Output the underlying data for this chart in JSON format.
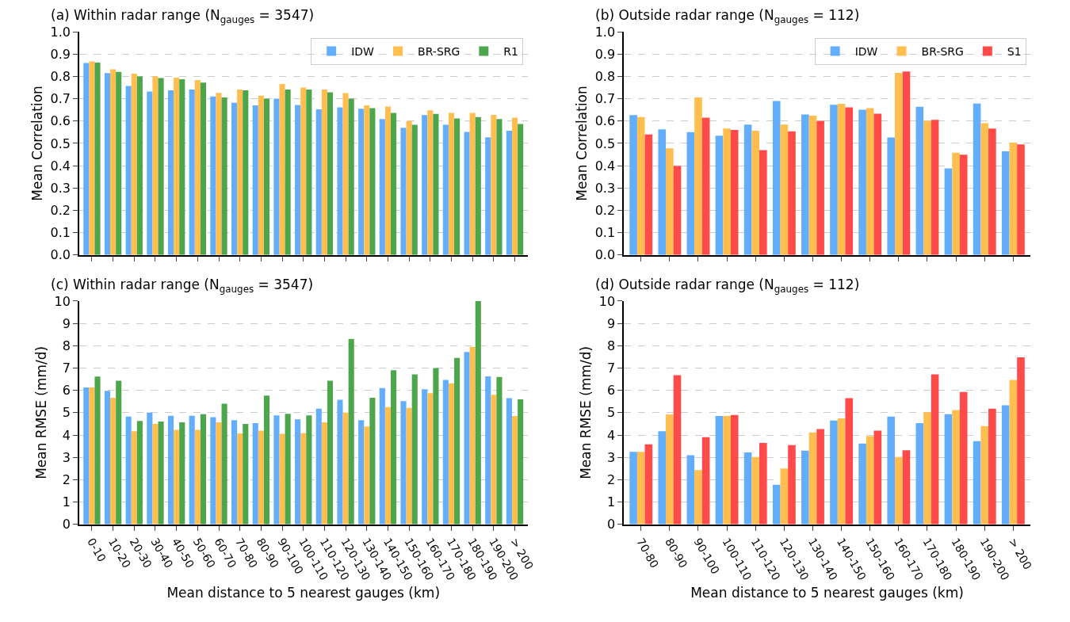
{
  "chart_data": [
    {
      "type": "bar",
      "title": "(a) Within radar range (N$_{gauges}$ = 3547)",
      "ylabel": "Mean Correlation",
      "categories": [
        null,
        null,
        null,
        null,
        null,
        null,
        null,
        null,
        null,
        null,
        null,
        null,
        null,
        null,
        null,
        null,
        null,
        null,
        null,
        null,
        null
      ],
      "series": [
        {
          "name": "IDW",
          "color": "#63aefc",
          "values": [
            0.86,
            0.815,
            0.757,
            0.732,
            0.738,
            0.741,
            0.71,
            0.682,
            0.67,
            0.7,
            0.672,
            0.652,
            0.661,
            0.655,
            0.609,
            0.57,
            0.627,
            0.583,
            0.551,
            0.527,
            0.557
          ]
        },
        {
          "name": "BR-SRG",
          "color": "#ffbe4f",
          "values": [
            0.867,
            0.832,
            0.812,
            0.8,
            0.794,
            0.784,
            0.726,
            0.741,
            0.714,
            0.766,
            0.75,
            0.741,
            0.725,
            0.67,
            0.665,
            0.6,
            0.648,
            0.636,
            0.636,
            0.628,
            0.615
          ]
        },
        {
          "name": "R1",
          "color": "#4ea64c",
          "values": [
            0.862,
            0.82,
            0.8,
            0.793,
            0.787,
            0.772,
            0.706,
            0.738,
            0.7,
            0.741,
            0.741,
            0.729,
            0.7,
            0.658,
            0.636,
            0.583,
            0.632,
            0.612,
            0.618,
            0.609,
            0.587
          ]
        }
      ],
      "ylim": [
        0,
        1
      ],
      "yticks": [
        {
          "value": 0,
          "label": "0.0"
        },
        {
          "value": 0.1,
          "label": "0.1"
        },
        {
          "value": 0.2,
          "label": "0.2"
        },
        {
          "value": 0.3,
          "label": "0.3"
        },
        {
          "value": 0.4,
          "label": "0.4"
        },
        {
          "value": 0.5,
          "label": "0.5"
        },
        {
          "value": 0.6,
          "label": "0.6"
        },
        {
          "value": 0.7,
          "label": "0.7"
        },
        {
          "value": 0.8,
          "label": "0.8"
        },
        {
          "value": 0.9,
          "label": "0.9"
        },
        {
          "value": 1,
          "label": "1.0"
        }
      ],
      "grid": "y",
      "legend": "top right",
      "tick_labels": "y"
    },
    {
      "type": "bar",
      "title": "(b) Outside radar range (N$_{gauges}$ = 112)",
      "ylabel": "Mean Correlation",
      "categories": [
        null,
        null,
        null,
        null,
        null,
        null,
        null,
        null,
        null,
        null,
        null,
        null,
        null,
        null
      ],
      "series": [
        {
          "name": "IDW",
          "color": "#63aefc",
          "values": [
            0.627,
            0.563,
            0.55,
            0.534,
            0.584,
            0.69,
            0.629,
            0.673,
            0.651,
            0.526,
            0.664,
            0.388,
            0.678,
            0.464
          ]
        },
        {
          "name": "BR-SRG",
          "color": "#ffbe4f",
          "values": [
            0.618,
            0.478,
            0.706,
            0.566,
            0.557,
            0.584,
            0.624,
            0.677,
            0.658,
            0.816,
            0.601,
            0.458,
            0.59,
            0.503
          ]
        },
        {
          "name": "S1",
          "color": "#ff4a4a",
          "values": [
            0.54,
            0.4,
            0.615,
            0.56,
            0.47,
            0.554,
            0.601,
            0.661,
            0.633,
            0.822,
            0.605,
            0.449,
            0.566,
            0.495
          ]
        }
      ],
      "ylim": [
        0,
        1
      ],
      "yticks": [
        {
          "value": 0,
          "label": "0.0"
        },
        {
          "value": 0.1,
          "label": "0.1"
        },
        {
          "value": 0.2,
          "label": "0.2"
        },
        {
          "value": 0.3,
          "label": "0.3"
        },
        {
          "value": 0.4,
          "label": "0.4"
        },
        {
          "value": 0.5,
          "label": "0.5"
        },
        {
          "value": 0.6,
          "label": "0.6"
        },
        {
          "value": 0.7,
          "label": "0.7"
        },
        {
          "value": 0.8,
          "label": "0.8"
        },
        {
          "value": 0.9,
          "label": "0.9"
        },
        {
          "value": 1,
          "label": "1.0"
        }
      ],
      "grid": "y",
      "legend": "top right",
      "tick_labels": "y"
    },
    {
      "type": "bar",
      "title": "(c) Within radar range (N$_{gauges}$ = 3547)",
      "ylabel": "Mean RMSE (mm/d)",
      "xlabel": "Mean distance to 5 nearest gauges (km)",
      "categories": [
        "0-10",
        "10-20",
        "20-30",
        "30-40",
        "40-50",
        "50-60",
        "60-70",
        "70-80",
        "80-90",
        "90-100",
        "100-110",
        "110-120",
        "120-130",
        "130-140",
        "140-150",
        "150-160",
        "160-170",
        "170-180",
        "180-190",
        "190-200",
        "> 200"
      ],
      "series": [
        {
          "color": "#63aefc",
          "values": [
            6.13,
            5.98,
            4.83,
            5.0,
            4.86,
            4.86,
            4.8,
            4.67,
            4.53,
            4.88,
            4.7,
            5.18,
            5.58,
            4.67,
            6.1,
            5.52,
            6.05,
            6.47,
            7.72,
            6.63,
            5.65
          ]
        },
        {
          "color": "#ffbe4f",
          "values": [
            6.13,
            5.67,
            4.17,
            4.5,
            4.23,
            4.23,
            4.57,
            4.07,
            4.2,
            4.05,
            4.08,
            4.57,
            5.0,
            4.38,
            5.25,
            5.22,
            5.87,
            6.32,
            7.95,
            5.8,
            4.85
          ]
        },
        {
          "color": "#4ea64c",
          "values": [
            6.62,
            6.43,
            4.63,
            4.6,
            4.57,
            4.93,
            5.4,
            4.5,
            5.77,
            4.95,
            4.88,
            6.43,
            8.3,
            5.67,
            6.9,
            6.72,
            7.0,
            7.45,
            10.0,
            6.6,
            5.6
          ]
        }
      ],
      "ylim": [
        0,
        10
      ],
      "yticks": [
        0,
        1,
        2,
        3,
        4,
        5,
        6,
        7,
        8,
        9,
        10
      ],
      "grid": "y"
    },
    {
      "type": "bar",
      "title": "(d) Outside radar range (N$_{gauges}$ = 112)",
      "ylabel": "Mean RMSE (mm/d)",
      "xlabel": "Mean distance to 5 nearest gauges (km)",
      "categories": [
        "70-80",
        "80-90",
        "90-100",
        "100-110",
        "110-120",
        "120-130",
        "130-140",
        "140-150",
        "150-160",
        "160-170",
        "170-180",
        "180-190",
        "190-200",
        "> 200"
      ],
      "series": [
        {
          "color": "#63aefc",
          "values": [
            3.25,
            4.17,
            3.1,
            4.85,
            3.22,
            1.77,
            3.3,
            4.65,
            3.62,
            4.83,
            4.53,
            4.93,
            3.73,
            5.33
          ]
        },
        {
          "color": "#ffbe4f",
          "values": [
            3.25,
            4.92,
            2.43,
            4.85,
            3.02,
            2.5,
            4.12,
            4.75,
            3.95,
            3.02,
            5.02,
            5.12,
            4.4,
            6.47
          ]
        },
        {
          "color": "#ff4a4a",
          "values": [
            3.58,
            6.68,
            3.9,
            4.9,
            3.65,
            3.55,
            4.27,
            5.65,
            4.2,
            3.32,
            6.72,
            5.93,
            5.18,
            7.48
          ]
        }
      ],
      "ylim": [
        0,
        10
      ],
      "yticks": [
        0,
        1,
        2,
        3,
        4,
        5,
        6,
        7,
        8,
        9,
        10
      ],
      "grid": "y"
    }
  ]
}
